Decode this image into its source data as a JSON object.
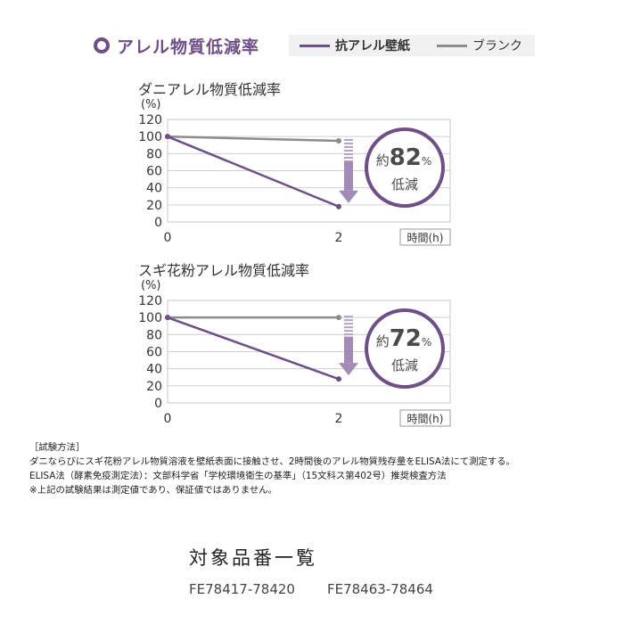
{
  "header": {
    "title": "アレル物質低減率",
    "legend": [
      {
        "label": "抗アレル壁紙",
        "color": "#6e4f86"
      },
      {
        "label": "ブランク",
        "color": "#8c8c8c"
      }
    ]
  },
  "chart_data": [
    {
      "type": "line",
      "title": "ダニアレル物質低減率",
      "ylabel": "(%)",
      "xlabel": "時間(h)",
      "ylim": [
        0,
        120
      ],
      "yticks": [
        0,
        20,
        40,
        60,
        80,
        100,
        120
      ],
      "xticks": [
        0,
        2
      ],
      "series": [
        {
          "name": "抗アレル壁紙",
          "color": "#6e4f86",
          "x": [
            0,
            2
          ],
          "y": [
            100,
            18
          ]
        },
        {
          "name": "ブランク",
          "color": "#8c8c8c",
          "x": [
            0,
            2
          ],
          "y": [
            100,
            95
          ]
        }
      ],
      "annotation": {
        "prefix": "約",
        "value": "82",
        "unit": "%",
        "label": "低減"
      }
    },
    {
      "type": "line",
      "title": "スギ花粉アレル物質低減率",
      "ylabel": "(%)",
      "xlabel": "時間(h)",
      "ylim": [
        0,
        120
      ],
      "yticks": [
        0,
        20,
        40,
        60,
        80,
        100,
        120
      ],
      "xticks": [
        0,
        2
      ],
      "series": [
        {
          "name": "抗アレル壁紙",
          "color": "#6e4f86",
          "x": [
            0,
            2
          ],
          "y": [
            100,
            28
          ]
        },
        {
          "name": "ブランク",
          "color": "#8c8c8c",
          "x": [
            0,
            2
          ],
          "y": [
            100,
            100
          ]
        }
      ],
      "annotation": {
        "prefix": "約",
        "value": "72",
        "unit": "%",
        "label": "低減"
      }
    }
  ],
  "method": {
    "heading": "［試験方法］",
    "lines": [
      "ダニならびにスギ花粉アレル物質溶液を壁紙表面に接触させ、2時間後のアレル物質残存量をELISA法にて測定する。",
      "ELISA法（酵素免疫測定法）：文部科学省「学校環境衛生の基準」（15文科ス第402号）推奨検査方法",
      "※上記の試験結果は測定値であり、保証値ではありません。"
    ]
  },
  "products": {
    "title": "対象品番一覧",
    "items": [
      "FE78417-78420",
      "FE78463-78464"
    ]
  }
}
